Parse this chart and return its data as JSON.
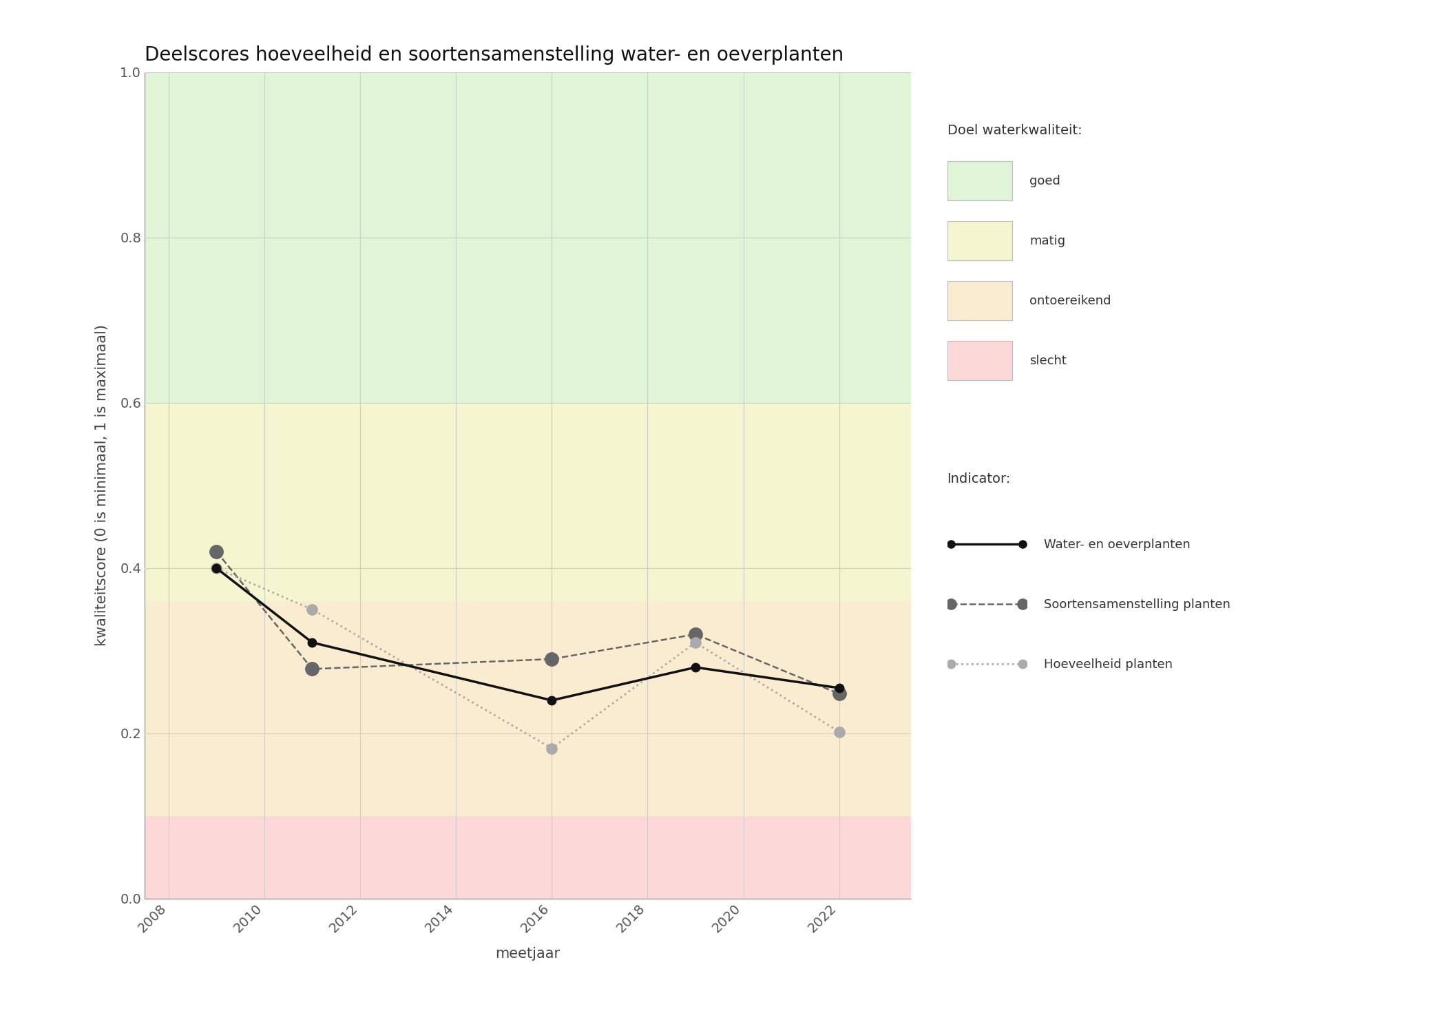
{
  "title": "Deelscores hoeveelheid en soortensamenstelling water- en oeverplanten",
  "xlabel": "meetjaar",
  "ylabel": "kwaliteitscore (0 is minimaal, 1 is maximaal)",
  "xlim": [
    2007.5,
    2023.5
  ],
  "ylim": [
    0.0,
    1.0
  ],
  "xticks": [
    2008,
    2010,
    2012,
    2014,
    2016,
    2018,
    2020,
    2022
  ],
  "yticks": [
    0.0,
    0.2,
    0.4,
    0.6,
    0.8,
    1.0
  ],
  "bg_bands": [
    {
      "ymin": 0.6,
      "ymax": 1.0,
      "color": "#e0f5d8",
      "label": "goed"
    },
    {
      "ymin": 0.36,
      "ymax": 0.6,
      "color": "#f5f5d0",
      "label": "matig"
    },
    {
      "ymin": 0.1,
      "ymax": 0.36,
      "color": "#faecd0",
      "label": "ontoereikend"
    },
    {
      "ymin": 0.0,
      "ymax": 0.1,
      "color": "#fcd8d8",
      "label": "slecht"
    }
  ],
  "series_order": [
    "water_oever",
    "soorten",
    "hoeveelheid"
  ],
  "series": {
    "water_oever": {
      "label": "Water- en oeverplanten",
      "x": [
        2009,
        2011,
        2016,
        2019,
        2022
      ],
      "y": [
        0.4,
        0.31,
        0.24,
        0.28,
        0.255
      ],
      "color": "#111111",
      "linestyle": "solid",
      "linewidth": 2.5,
      "markersize": 9,
      "markerfacecolor": "#111111",
      "marker": "o",
      "zorder": 5
    },
    "soorten": {
      "label": "Soortensamenstelling planten",
      "x": [
        2009,
        2011,
        2016,
        2019,
        2022
      ],
      "y": [
        0.42,
        0.278,
        0.29,
        0.32,
        0.248
      ],
      "color": "#666666",
      "linestyle": "dashed",
      "linewidth": 1.8,
      "markersize": 14,
      "markerfacecolor": "#666666",
      "marker": "o",
      "zorder": 4
    },
    "hoeveelheid": {
      "label": "Hoeveelheid planten",
      "x": [
        2009,
        2011,
        2016,
        2019,
        2022
      ],
      "y": [
        0.4,
        0.35,
        0.182,
        0.31,
        0.202
      ],
      "color": "#aaaaaa",
      "linestyle": "dotted",
      "linewidth": 2.0,
      "markersize": 11,
      "markerfacecolor": "#aaaaaa",
      "marker": "o",
      "zorder": 4
    }
  },
  "background_color": "#ffffff",
  "grid_color": "#cccccc",
  "title_fontsize": 20,
  "label_fontsize": 15,
  "tick_fontsize": 14,
  "legend_fontsize": 14
}
